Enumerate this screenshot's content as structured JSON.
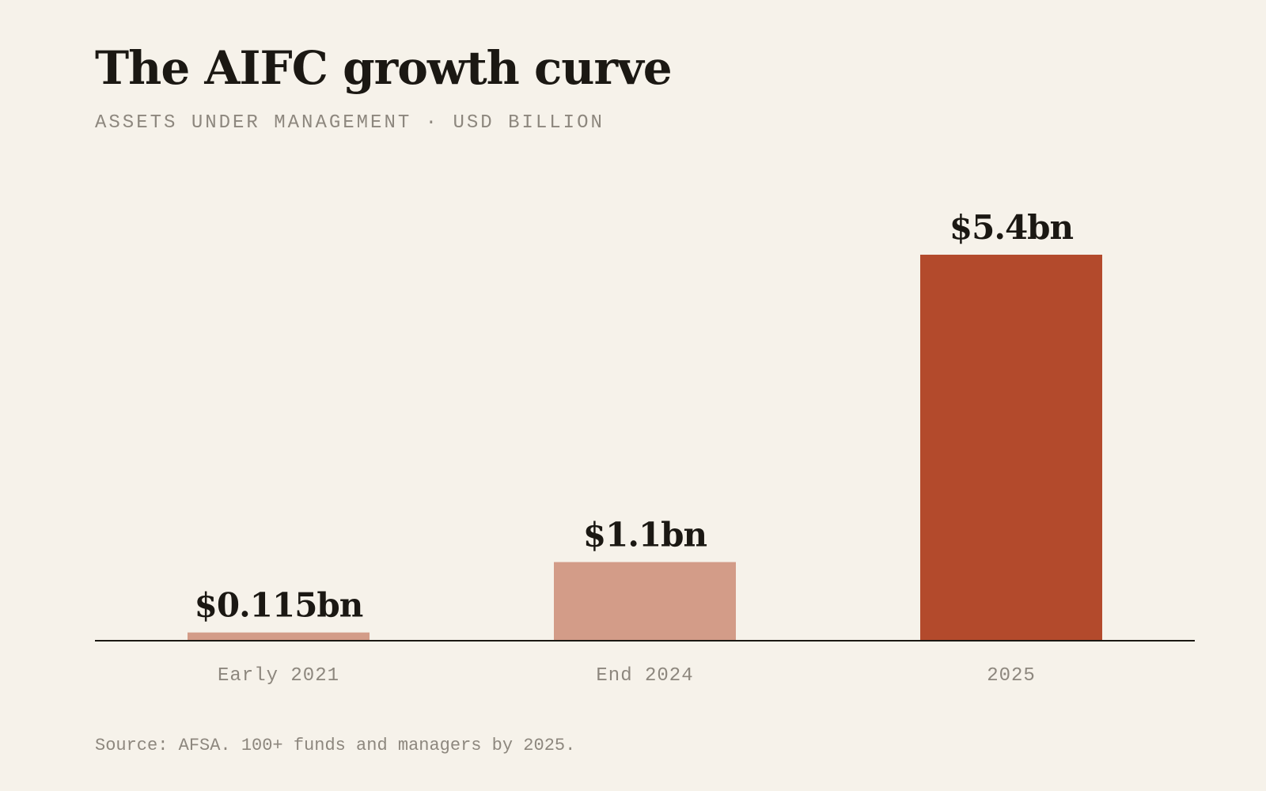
{
  "colors": {
    "background": "#f6f2ea",
    "bar_muted": "#d39c88",
    "bar_highlight": "#b34a2c",
    "text_dark": "#1b1813",
    "text_muted": "#8d877e",
    "axis": "#1b1813"
  },
  "footer": {
    "source": "Source: AFSA. 100+ funds and managers by 2025."
  },
  "chart_data": {
    "type": "bar",
    "title": "The AIFC growth curve",
    "subtitle": "ASSETS UNDER MANAGEMENT · USD BILLION",
    "categories": [
      "Early 2021",
      "End 2024",
      "2025"
    ],
    "values": [
      0.115,
      1.1,
      5.4
    ],
    "value_labels": [
      "$0.115bn",
      "$1.1bn",
      "$5.4bn"
    ],
    "highlight_index": 2,
    "xlabel": "",
    "ylabel": "",
    "ylim": [
      0,
      5.4
    ],
    "grid": false,
    "legend": "none"
  }
}
